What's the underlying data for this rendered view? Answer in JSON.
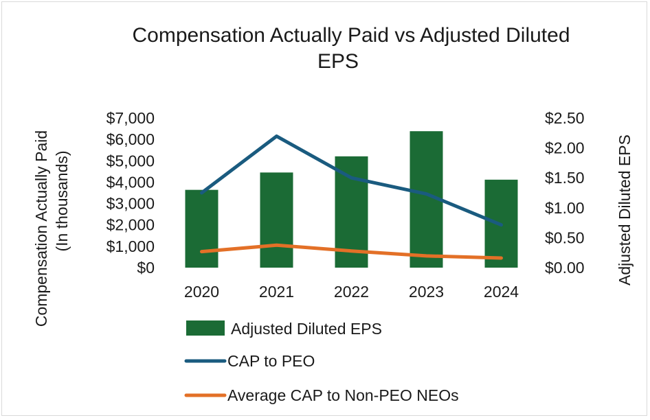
{
  "chart_data": {
    "type": "bar+line",
    "title_line1": "Compensation Actually Paid vs Adjusted Diluted",
    "title_line2": "EPS",
    "categories": [
      "2020",
      "2021",
      "2022",
      "2023",
      "2024"
    ],
    "left_axis": {
      "label_line1": "Compensation Actually Paid",
      "label_line2": "(In thousands)",
      "range": [
        0,
        7000
      ],
      "ticks": [
        {
          "value": 0,
          "label": "$0"
        },
        {
          "value": 1000,
          "label": "$1,000"
        },
        {
          "value": 2000,
          "label": "$2,000"
        },
        {
          "value": 3000,
          "label": "$3,000"
        },
        {
          "value": 4000,
          "label": "$4,000"
        },
        {
          "value": 5000,
          "label": "$5,000"
        },
        {
          "value": 6000,
          "label": "$6,000"
        },
        {
          "value": 7000,
          "label": "$7,000"
        }
      ]
    },
    "right_axis": {
      "label": "Adjusted Diluted EPS",
      "range": [
        0,
        2.5
      ],
      "ticks": [
        {
          "value": 0,
          "label": "$0.00"
        },
        {
          "value": 0.5,
          "label": "$0.50"
        },
        {
          "value": 1.0,
          "label": "$1.00"
        },
        {
          "value": 1.5,
          "label": "$1.50"
        },
        {
          "value": 2.0,
          "label": "$2.00"
        },
        {
          "value": 2.5,
          "label": "$2.50"
        }
      ]
    },
    "series": [
      {
        "name": "Adjusted Diluted EPS",
        "kind": "bar",
        "axis": "right",
        "color": "#1b6b35",
        "values": [
          1.3,
          1.59,
          1.86,
          2.28,
          1.47
        ]
      },
      {
        "name": "CAP to PEO",
        "kind": "line",
        "axis": "left",
        "color": "#1a5b7f",
        "values": [
          3500,
          6150,
          4200,
          3450,
          2000
        ]
      },
      {
        "name": "Average CAP to Non-PEO NEOs",
        "kind": "line",
        "axis": "left",
        "color": "#e37027",
        "values": [
          750,
          1050,
          780,
          550,
          450
        ]
      }
    ],
    "legend_position": "bottom",
    "grid": false
  }
}
